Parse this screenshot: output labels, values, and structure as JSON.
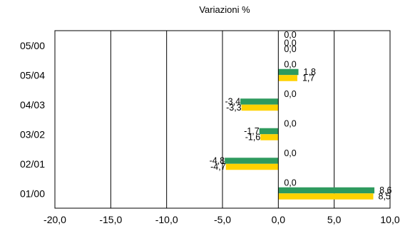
{
  "chart_data": {
    "type": "bar",
    "orientation": "horizontal",
    "title": "Variazioni %",
    "xlabel": "",
    "ylabel": "",
    "xlim": [
      -20,
      10
    ],
    "x_ticks": [
      -20,
      -15,
      -10,
      -5,
      0,
      5,
      10
    ],
    "x_tick_labels": [
      "-20,0",
      "-15,0",
      "-10,0",
      "-5,0",
      "0,0",
      "5,0",
      "10,0"
    ],
    "grid": "vertical",
    "legend": "none",
    "categories": [
      "05/00",
      "05/04",
      "04/03",
      "03/02",
      "02/01",
      "01/00"
    ],
    "series": [
      {
        "color": "#2e9a5e",
        "values": [
          0.0,
          1.8,
          -3.4,
          -1.7,
          -4.8,
          8.6
        ],
        "labels": [
          "0,0",
          "1,8",
          "-3,4",
          "-1,7",
          "-4,8",
          "8,6"
        ]
      },
      {
        "color": "#ffd200",
        "values": [
          0.0,
          1.7,
          -3.3,
          -1.6,
          -4.7,
          8.5
        ],
        "labels": [
          "0,0",
          "1,7",
          "-3,3",
          "-1,6",
          "-4,7",
          "8,5"
        ]
      }
    ],
    "zero_labels": [
      "0,0",
      "0,0",
      "0,0",
      "0,0",
      "0,0",
      "0,0"
    ]
  }
}
